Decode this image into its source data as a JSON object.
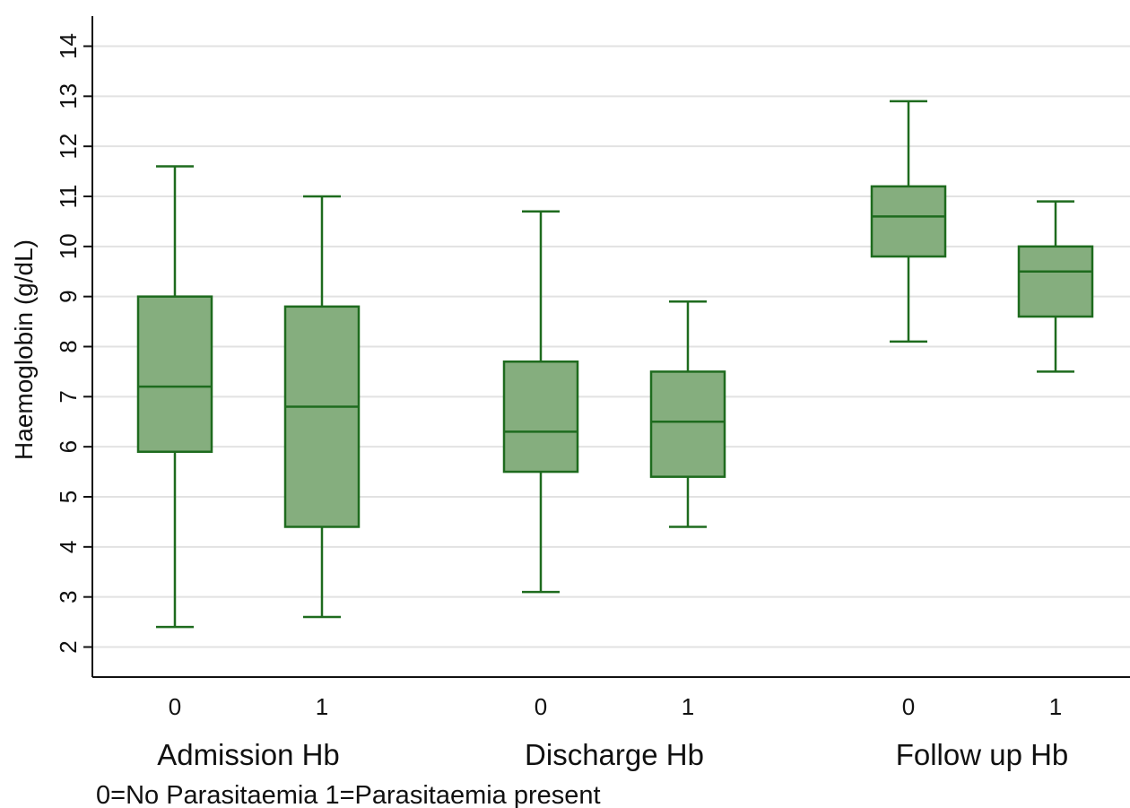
{
  "chart_data": {
    "type": "boxplot",
    "ylabel": "Haemoglobin (g/dL)",
    "ylim": [
      1.4,
      14.6
    ],
    "yticks": [
      2,
      3,
      4,
      5,
      6,
      7,
      8,
      9,
      10,
      11,
      12,
      13,
      14
    ],
    "grid": true,
    "colors": {
      "box_fill": "#85ae7e",
      "box_stroke": "#1e6b1e",
      "grid": "#e2e2e2",
      "axis": "#111111"
    },
    "groups": [
      {
        "label": "Admission Hb",
        "boxes": [
          {
            "category": "0",
            "min": 2.4,
            "q1": 5.9,
            "median": 7.2,
            "q3": 9.0,
            "max": 11.6
          },
          {
            "category": "1",
            "min": 2.6,
            "q1": 4.4,
            "median": 6.8,
            "q3": 8.8,
            "max": 11.0
          }
        ]
      },
      {
        "label": "Discharge Hb",
        "boxes": [
          {
            "category": "0",
            "min": 3.1,
            "q1": 5.5,
            "median": 6.3,
            "q3": 7.7,
            "max": 10.7
          },
          {
            "category": "1",
            "min": 4.4,
            "q1": 5.4,
            "median": 6.5,
            "q3": 7.5,
            "max": 8.9
          }
        ]
      },
      {
        "label": "Follow up Hb",
        "boxes": [
          {
            "category": "0",
            "min": 8.1,
            "q1": 9.8,
            "median": 10.6,
            "q3": 11.2,
            "max": 12.9
          },
          {
            "category": "1",
            "min": 7.5,
            "q1": 8.6,
            "median": 9.5,
            "q3": 10.0,
            "max": 10.9
          }
        ]
      }
    ],
    "note": "0=No Parasitaemia 1=Parasitaemia present"
  }
}
